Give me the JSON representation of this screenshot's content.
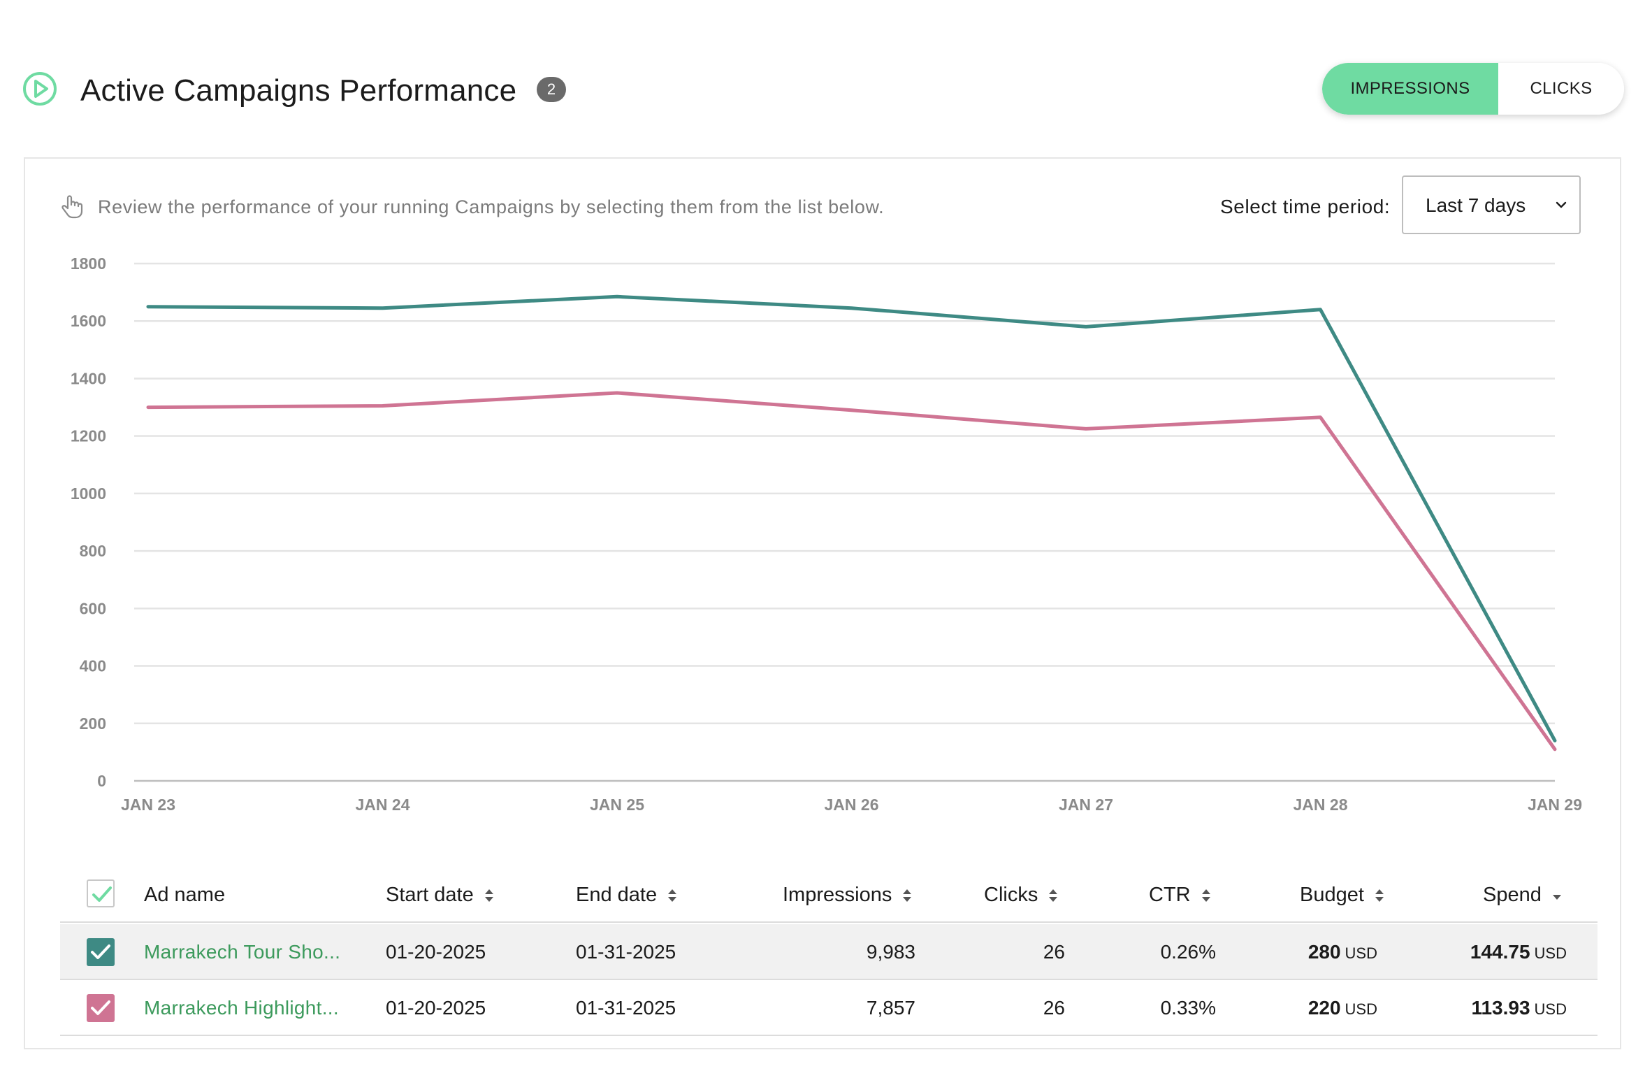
{
  "header": {
    "title": "Active Campaigns Performance",
    "count": "2",
    "toggle": {
      "impressions_label": "IMPRESSIONS",
      "clicks_label": "CLICKS",
      "active": "impressions"
    }
  },
  "card": {
    "hint": "Review the performance of your running Campaigns by selecting them from the list below.",
    "period_label": "Select time period:",
    "period_value": "Last 7 days"
  },
  "colors": {
    "accent": "#6fdba2",
    "series1": "#3e8a84",
    "series2": "#cf7493",
    "link": "#3c9a5c"
  },
  "chart_data": {
    "type": "line",
    "categories": [
      "JAN 23",
      "JAN 24",
      "JAN 25",
      "JAN 26",
      "JAN 27",
      "JAN 28",
      "JAN 29"
    ],
    "ylim": [
      0,
      1800
    ],
    "yticks": [
      0,
      200,
      400,
      600,
      800,
      1000,
      1200,
      1400,
      1600,
      1800
    ],
    "grid": true,
    "series": [
      {
        "name": "Marrakech Tour Sho...",
        "color": "#3e8a84",
        "values": [
          1650,
          1645,
          1685,
          1645,
          1580,
          1640,
          140
        ]
      },
      {
        "name": "Marrakech Highlight...",
        "color": "#cf7493",
        "values": [
          1300,
          1305,
          1350,
          1290,
          1225,
          1265,
          110
        ]
      }
    ]
  },
  "table": {
    "headers": {
      "ad_name": "Ad name",
      "start_date": "Start date",
      "end_date": "End date",
      "impressions": "Impressions",
      "clicks": "Clicks",
      "ctr": "CTR",
      "budget": "Budget",
      "spend": "Spend"
    },
    "rows": [
      {
        "name": "Marrakech Tour Sho...",
        "start": "01-20-2025",
        "end": "01-31-2025",
        "impressions": "9,983",
        "clicks": "26",
        "ctr": "0.26%",
        "budget": "280",
        "budget_unit": "USD",
        "spend": "144.75",
        "spend_unit": "USD",
        "color": "#3e8a84"
      },
      {
        "name": "Marrakech Highlight...",
        "start": "01-20-2025",
        "end": "01-31-2025",
        "impressions": "7,857",
        "clicks": "26",
        "ctr": "0.33%",
        "budget": "220",
        "budget_unit": "USD",
        "spend": "113.93",
        "spend_unit": "USD",
        "color": "#cf7493"
      }
    ]
  }
}
